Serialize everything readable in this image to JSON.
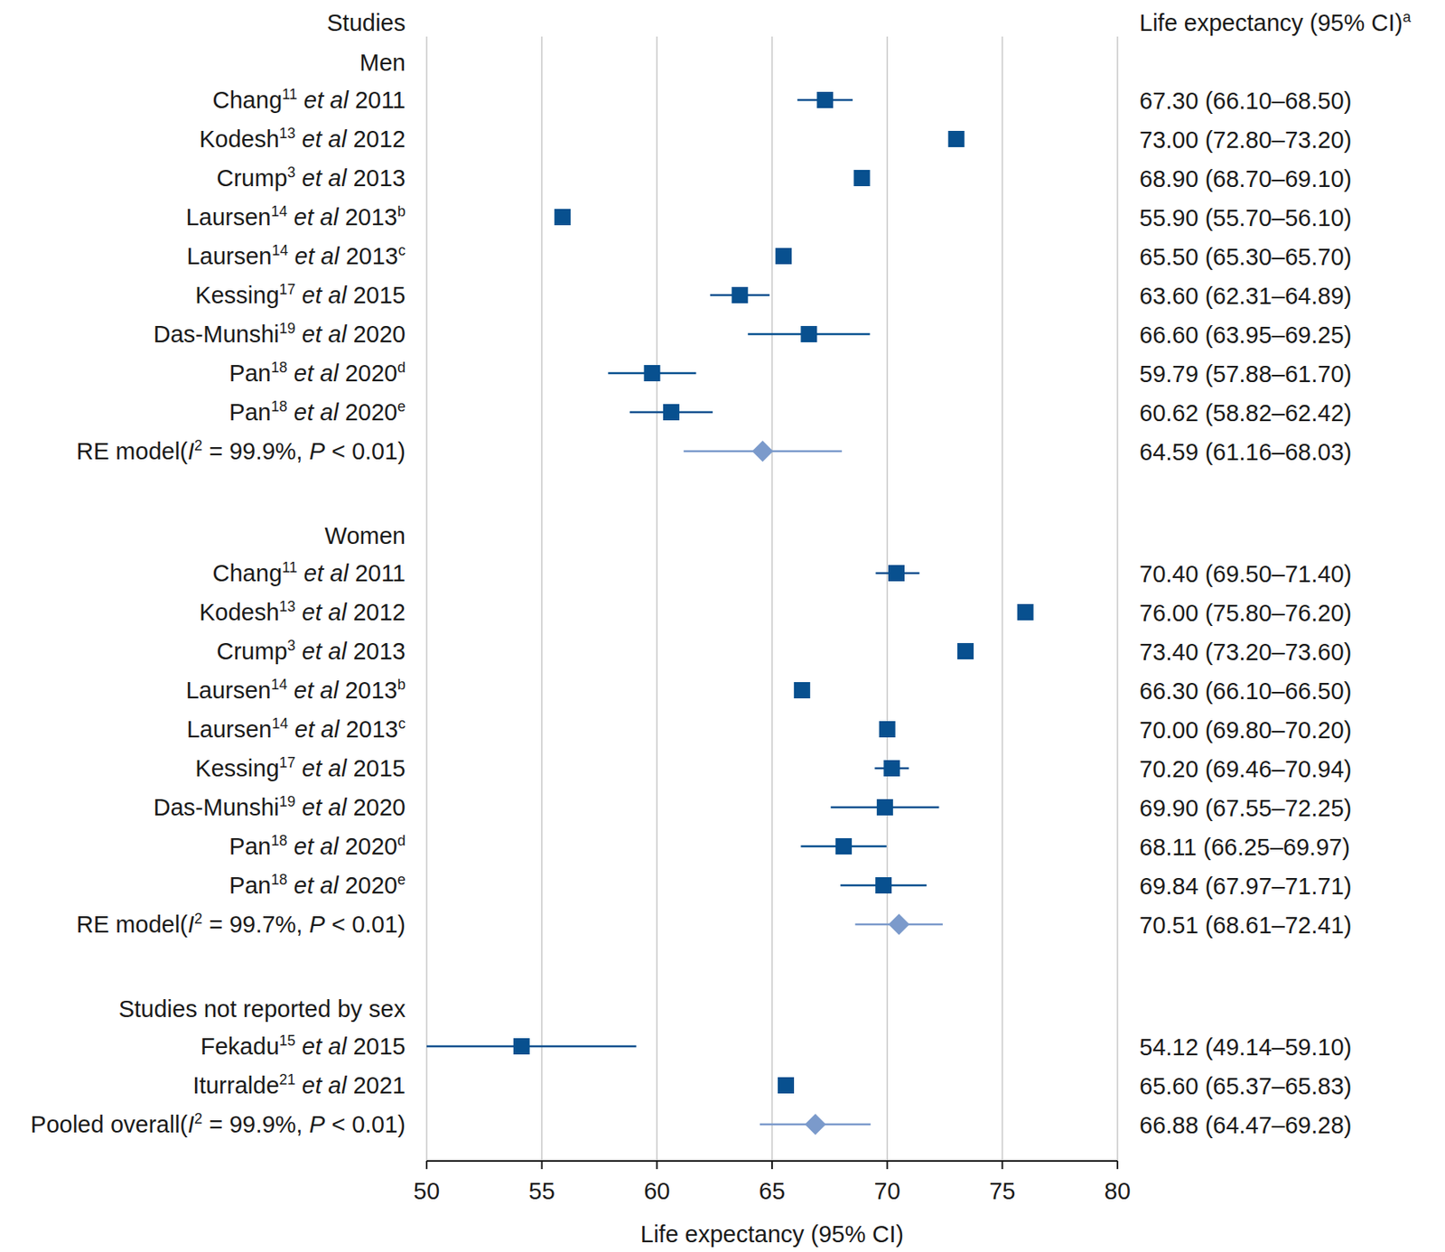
{
  "chart_data": {
    "type": "forest",
    "studies_header": "Studies",
    "column_header": [
      {
        "text": "Life expectancy (95% CI)"
      },
      {
        "text": "a",
        "sup": true
      }
    ],
    "x_label": "Life expectancy (95% CI)",
    "xlim": [
      50,
      80
    ],
    "xticks": [
      50,
      55,
      60,
      65,
      70,
      75,
      80
    ],
    "grid": true,
    "groups": [
      {
        "name": "Men",
        "color": "#08508f",
        "studies": [
          {
            "parts": [
              {
                "text": "Chang"
              },
              {
                "text": "11",
                "sup": true
              },
              {
                "text": " et al",
                "italic": true
              },
              {
                "text": " 2011"
              }
            ]
          },
          {
            "parts": [
              {
                "text": "Kodesh"
              },
              {
                "text": "13",
                "sup": true
              },
              {
                "text": " et al",
                "italic": true
              },
              {
                "text": " 2012"
              }
            ]
          },
          {
            "parts": [
              {
                "text": "Crump"
              },
              {
                "text": "3",
                "sup": true
              },
              {
                "text": " et al",
                "italic": true
              },
              {
                "text": " 2013"
              }
            ]
          },
          {
            "parts": [
              {
                "text": "Laursen"
              },
              {
                "text": "14",
                "sup": true
              },
              {
                "text": " et al",
                "italic": true
              },
              {
                "text": " 2013"
              },
              {
                "text": "b",
                "sup": true
              }
            ]
          },
          {
            "parts": [
              {
                "text": "Laursen"
              },
              {
                "text": "14",
                "sup": true
              },
              {
                "text": " et al",
                "italic": true
              },
              {
                "text": " 2013"
              },
              {
                "text": "c",
                "sup": true
              }
            ]
          },
          {
            "parts": [
              {
                "text": "Kessing"
              },
              {
                "text": "17",
                "sup": true
              },
              {
                "text": " et al",
                "italic": true
              },
              {
                "text": " 2015"
              }
            ]
          },
          {
            "parts": [
              {
                "text": "Das-Munshi"
              },
              {
                "text": "19",
                "sup": true
              },
              {
                "text": " et al",
                "italic": true
              },
              {
                "text": " 2020"
              }
            ]
          },
          {
            "parts": [
              {
                "text": "Pan"
              },
              {
                "text": "18",
                "sup": true
              },
              {
                "text": " et al",
                "italic": true
              },
              {
                "text": " 2020"
              },
              {
                "text": "d",
                "sup": true
              }
            ]
          },
          {
            "parts": [
              {
                "text": "Pan"
              },
              {
                "text": "18",
                "sup": true
              },
              {
                "text": " et al",
                "italic": true
              },
              {
                "text": " 2020"
              },
              {
                "text": "e",
                "sup": true
              }
            ]
          }
        ],
        "values": [
          67.3,
          73.0,
          68.9,
          55.9,
          65.5,
          63.6,
          66.6,
          59.79,
          60.62
        ],
        "ci_lower": [
          66.1,
          72.8,
          68.7,
          55.7,
          65.3,
          62.31,
          63.95,
          57.88,
          58.82
        ],
        "ci_upper": [
          68.5,
          73.2,
          69.1,
          56.1,
          65.7,
          64.89,
          69.25,
          61.7,
          62.42
        ],
        "value_labels": [
          "67.30 (66.10–68.50)",
          "73.00 (72.80–73.20)",
          "68.90 (68.70–69.10)",
          "55.90 (55.70–56.10)",
          "65.50 (65.30–65.70)",
          "63.60 (62.31–64.89)",
          "66.60 (63.95–69.25)",
          "59.79 (57.88–61.70)",
          "60.62 (58.82–62.42)"
        ],
        "pooled": {
          "color": "#7b9acb",
          "parts": [
            {
              "text": "RE model("
            },
            {
              "text": "I",
              "italic": true
            },
            {
              "text": "2",
              "sup": true
            },
            {
              "text": " = 99.9%, "
            },
            {
              "text": "P",
              "italic": true
            },
            {
              "text": " < 0.01)"
            }
          ],
          "value": 64.59,
          "ci_lower": 61.16,
          "ci_upper": 68.03,
          "value_label": "64.59 (61.16–68.03)"
        }
      },
      {
        "name": "Women",
        "color": "#08508f",
        "studies": [
          {
            "parts": [
              {
                "text": "Chang"
              },
              {
                "text": "11",
                "sup": true
              },
              {
                "text": " et al",
                "italic": true
              },
              {
                "text": " 2011"
              }
            ]
          },
          {
            "parts": [
              {
                "text": "Kodesh"
              },
              {
                "text": "13",
                "sup": true
              },
              {
                "text": " et al",
                "italic": true
              },
              {
                "text": " 2012"
              }
            ]
          },
          {
            "parts": [
              {
                "text": "Crump"
              },
              {
                "text": "3",
                "sup": true
              },
              {
                "text": " et al",
                "italic": true
              },
              {
                "text": " 2013"
              }
            ]
          },
          {
            "parts": [
              {
                "text": "Laursen"
              },
              {
                "text": "14",
                "sup": true
              },
              {
                "text": " et al",
                "italic": true
              },
              {
                "text": " 2013"
              },
              {
                "text": "b",
                "sup": true
              }
            ]
          },
          {
            "parts": [
              {
                "text": "Laursen"
              },
              {
                "text": "14",
                "sup": true
              },
              {
                "text": " et al",
                "italic": true
              },
              {
                "text": " 2013"
              },
              {
                "text": "c",
                "sup": true
              }
            ]
          },
          {
            "parts": [
              {
                "text": "Kessing"
              },
              {
                "text": "17",
                "sup": true
              },
              {
                "text": " et al",
                "italic": true
              },
              {
                "text": " 2015"
              }
            ]
          },
          {
            "parts": [
              {
                "text": "Das-Munshi"
              },
              {
                "text": "19",
                "sup": true
              },
              {
                "text": " et al",
                "italic": true
              },
              {
                "text": " 2020"
              }
            ]
          },
          {
            "parts": [
              {
                "text": "Pan"
              },
              {
                "text": "18",
                "sup": true
              },
              {
                "text": " et al",
                "italic": true
              },
              {
                "text": " 2020"
              },
              {
                "text": "d",
                "sup": true
              }
            ]
          },
          {
            "parts": [
              {
                "text": "Pan"
              },
              {
                "text": "18",
                "sup": true
              },
              {
                "text": " et al",
                "italic": true
              },
              {
                "text": " 2020"
              },
              {
                "text": "e",
                "sup": true
              }
            ]
          }
        ],
        "values": [
          70.4,
          76.0,
          73.4,
          66.3,
          70.0,
          70.2,
          69.9,
          68.11,
          69.84
        ],
        "ci_lower": [
          69.5,
          75.8,
          73.2,
          66.1,
          69.8,
          69.46,
          67.55,
          66.25,
          67.97
        ],
        "ci_upper": [
          71.4,
          76.2,
          73.6,
          66.5,
          70.2,
          70.94,
          72.25,
          69.97,
          71.71
        ],
        "value_labels": [
          "70.40 (69.50–71.40)",
          "76.00 (75.80–76.20)",
          "73.40 (73.20–73.60)",
          "66.30 (66.10–66.50)",
          "70.00 (69.80–70.20)",
          "70.20 (69.46–70.94)",
          "69.90 (67.55–72.25)",
          "68.11 (66.25–69.97)",
          "69.84 (67.97–71.71)"
        ],
        "pooled": {
          "color": "#7b9acb",
          "parts": [
            {
              "text": "RE model("
            },
            {
              "text": "I",
              "italic": true
            },
            {
              "text": "2",
              "sup": true
            },
            {
              "text": " = 99.7%, "
            },
            {
              "text": "P",
              "italic": true
            },
            {
              "text": " < 0.01)"
            }
          ],
          "value": 70.51,
          "ci_lower": 68.61,
          "ci_upper": 72.41,
          "value_label": "70.51 (68.61–72.41)"
        }
      },
      {
        "name": "Studies not reported by sex",
        "color": "#08508f",
        "studies": [
          {
            "parts": [
              {
                "text": "Fekadu"
              },
              {
                "text": "15",
                "sup": true
              },
              {
                "text": " et al",
                "italic": true
              },
              {
                "text": " 2015"
              }
            ]
          },
          {
            "parts": [
              {
                "text": "Iturralde"
              },
              {
                "text": "21",
                "sup": true
              },
              {
                "text": " et al",
                "italic": true
              },
              {
                "text": " 2021"
              }
            ]
          }
        ],
        "values": [
          54.12,
          65.6
        ],
        "ci_lower": [
          49.14,
          65.37
        ],
        "ci_upper": [
          59.1,
          65.83
        ],
        "value_labels": [
          "54.12 (49.14–59.10)",
          "65.60 (65.37–65.83)"
        ]
      }
    ],
    "overall": {
      "color": "#7b9acb",
      "parts": [
        {
          "text": "Pooled overall("
        },
        {
          "text": "I",
          "italic": true
        },
        {
          "text": "2",
          "sup": true
        },
        {
          "text": " = 99.9%, "
        },
        {
          "text": "P",
          "italic": true
        },
        {
          "text": " < 0.01)"
        }
      ],
      "value": 66.88,
      "ci_lower": 64.47,
      "ci_upper": 69.28,
      "value_label": "66.88 (64.47–69.28)"
    }
  }
}
